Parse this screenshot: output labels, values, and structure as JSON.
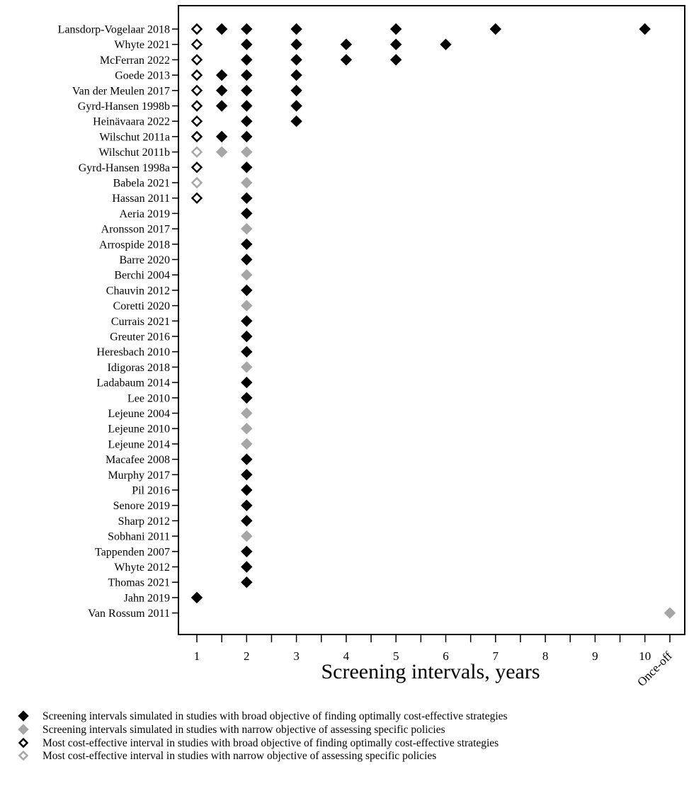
{
  "chart_data": {
    "type": "scatter",
    "xlabel": "Screening intervals, years",
    "x_ticks": [
      "1",
      "2",
      "3",
      "4",
      "5",
      "6",
      "7",
      "8",
      "9",
      "10",
      "Once-off"
    ],
    "colors": {
      "broad": "#000000",
      "narrow": "#a6a6a6"
    },
    "studies": [
      {
        "name": "Lansdorp-Vogelaar 2018",
        "objective": "broad",
        "simulated": [
          1.5,
          2,
          3,
          5,
          7,
          10
        ],
        "best": 1
      },
      {
        "name": "Whyte 2021",
        "objective": "broad",
        "simulated": [
          2,
          3,
          4,
          5,
          6
        ],
        "best": 1
      },
      {
        "name": "McFerran 2022",
        "objective": "broad",
        "simulated": [
          2,
          3,
          4,
          5
        ],
        "best": 1
      },
      {
        "name": "Goede 2013",
        "objective": "broad",
        "simulated": [
          1.5,
          2,
          3
        ],
        "best": 1
      },
      {
        "name": "Van der Meulen 2017",
        "objective": "broad",
        "simulated": [
          1.5,
          2,
          3
        ],
        "best": 1
      },
      {
        "name": "Gyrd-Hansen 1998b",
        "objective": "broad",
        "simulated": [
          1.5,
          2,
          3
        ],
        "best": 1
      },
      {
        "name": "Heinävaara 2022",
        "objective": "broad",
        "simulated": [
          2,
          3
        ],
        "best": 1
      },
      {
        "name": "Wilschut 2011a",
        "objective": "broad",
        "simulated": [
          1.5,
          2
        ],
        "best": 1
      },
      {
        "name": "Wilschut 2011b",
        "objective": "narrow",
        "simulated": [
          1.5,
          2
        ],
        "best": 1
      },
      {
        "name": "Gyrd-Hansen 1998a",
        "objective": "broad",
        "simulated": [
          2
        ],
        "best": 1
      },
      {
        "name": "Babela 2021",
        "objective": "narrow",
        "simulated": [
          2
        ],
        "best": 1
      },
      {
        "name": "Hassan 2011",
        "objective": "broad",
        "simulated": [
          2
        ],
        "best": 1
      },
      {
        "name": "Aeria 2019",
        "objective": "broad",
        "simulated": [
          2
        ],
        "best": null
      },
      {
        "name": "Aronsson 2017",
        "objective": "narrow",
        "simulated": [
          2
        ],
        "best": null
      },
      {
        "name": "Arrospide 2018",
        "objective": "broad",
        "simulated": [
          2
        ],
        "best": null
      },
      {
        "name": "Barre 2020",
        "objective": "broad",
        "simulated": [
          2
        ],
        "best": null
      },
      {
        "name": "Berchi 2004",
        "objective": "narrow",
        "simulated": [
          2
        ],
        "best": null
      },
      {
        "name": "Chauvin 2012",
        "objective": "broad",
        "simulated": [
          2
        ],
        "best": null
      },
      {
        "name": "Coretti 2020",
        "objective": "narrow",
        "simulated": [
          2
        ],
        "best": null
      },
      {
        "name": "Currais 2021",
        "objective": "broad",
        "simulated": [
          2
        ],
        "best": null
      },
      {
        "name": "Greuter 2016",
        "objective": "broad",
        "simulated": [
          2
        ],
        "best": null
      },
      {
        "name": "Heresbach 2010",
        "objective": "broad",
        "simulated": [
          2
        ],
        "best": null
      },
      {
        "name": "Idigoras 2018",
        "objective": "narrow",
        "simulated": [
          2
        ],
        "best": null
      },
      {
        "name": "Ladabaum 2014",
        "objective": "broad",
        "simulated": [
          2
        ],
        "best": null
      },
      {
        "name": "Lee 2010",
        "objective": "broad",
        "simulated": [
          2
        ],
        "best": null
      },
      {
        "name": "Lejeune 2004",
        "objective": "narrow",
        "simulated": [
          2
        ],
        "best": null
      },
      {
        "name": "Lejeune 2010",
        "objective": "narrow",
        "simulated": [
          2
        ],
        "best": null
      },
      {
        "name": "Lejeune 2014",
        "objective": "narrow",
        "simulated": [
          2
        ],
        "best": null
      },
      {
        "name": "Macafee 2008",
        "objective": "broad",
        "simulated": [
          2
        ],
        "best": null
      },
      {
        "name": "Murphy 2017",
        "objective": "broad",
        "simulated": [
          2
        ],
        "best": null
      },
      {
        "name": "Pil 2016",
        "objective": "broad",
        "simulated": [
          2
        ],
        "best": null
      },
      {
        "name": "Senore 2019",
        "objective": "broad",
        "simulated": [
          2
        ],
        "best": null
      },
      {
        "name": "Sharp 2012",
        "objective": "broad",
        "simulated": [
          2
        ],
        "best": null
      },
      {
        "name": "Sobhani 2011",
        "objective": "narrow",
        "simulated": [
          2
        ],
        "best": null
      },
      {
        "name": "Tappenden 2007",
        "objective": "broad",
        "simulated": [
          2
        ],
        "best": null
      },
      {
        "name": "Whyte 2012",
        "objective": "broad",
        "simulated": [
          2
        ],
        "best": null
      },
      {
        "name": "Thomas 2021",
        "objective": "broad",
        "simulated": [
          2
        ],
        "best": null
      },
      {
        "name": "Jahn 2019",
        "objective": "broad",
        "simulated": [
          1
        ],
        "best": null
      },
      {
        "name": "Van Rossum 2011",
        "objective": "narrow",
        "simulated": [
          "Once-off"
        ],
        "best": null
      }
    ],
    "legend": [
      {
        "marker": "filled-broad",
        "label": "Screening intervals simulated in studies with broad objective of finding optimally cost-effective strategies"
      },
      {
        "marker": "filled-narrow",
        "label": "Screening intervals simulated in studies with narrow objective of assessing specific policies"
      },
      {
        "marker": "open-broad",
        "label": "Most cost-effective interval in studies with broad objective of finding optimally cost-effective strategies"
      },
      {
        "marker": "open-narrow",
        "label": "Most cost-effective interval in studies with narrow objective of assessing specific policies"
      }
    ]
  }
}
